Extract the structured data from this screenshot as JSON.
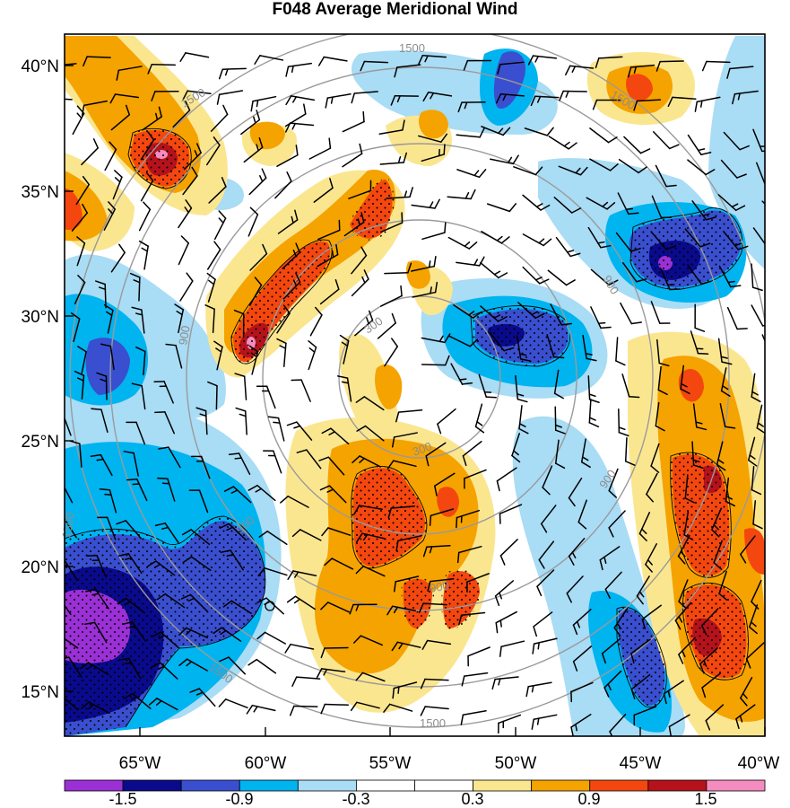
{
  "title": "F048 Average Meridional Wind",
  "x_axis_ticks": [
    "65°W",
    "60°W",
    "55°W",
    "50°W",
    "45°W",
    "40°W"
  ],
  "y_axis_ticks": [
    "40°N",
    "35°N",
    "30°N",
    "25°N",
    "20°N",
    "15°N"
  ],
  "colorbar": {
    "labels": [
      "-1.5",
      "-0.9",
      "-0.3",
      "0.3",
      "0.9",
      "1.5"
    ],
    "colors": [
      "#9b30d6",
      "#0a0a8c",
      "#3a4fcf",
      "#00b4f0",
      "#a9dcf5",
      "#ffffff",
      "#ffffff",
      "#fbe690",
      "#f5a300",
      "#f4470f",
      "#b5121b",
      "#f48cc0"
    ]
  },
  "contour_labels": [
    "1500",
    "1500",
    "900",
    "900",
    "300",
    "300",
    "900",
    "1500",
    "900",
    "1500",
    "900",
    "1500",
    "1500"
  ],
  "chart_data": {
    "type": "heatmap",
    "title": "F048 Average Meridional Wind",
    "x_range": [
      "68°W",
      "40°W"
    ],
    "y_range": [
      "13°N",
      "41°N"
    ],
    "xticks": [
      "65°W",
      "60°W",
      "55°W",
      "50°W",
      "45°W",
      "40°W"
    ],
    "yticks": [
      "40°N",
      "35°N",
      "30°N",
      "25°N",
      "20°N",
      "15°N"
    ],
    "colorbar_levels": [
      -1.5,
      -1.2,
      -0.9,
      -0.6,
      -0.3,
      0,
      0.3,
      0.6,
      0.9,
      1.2,
      1.5
    ],
    "overlay_contours": [
      300,
      900,
      1500
    ],
    "overlay": "wind barbs; stippled regions where magnitude exceeds 0.9"
  }
}
